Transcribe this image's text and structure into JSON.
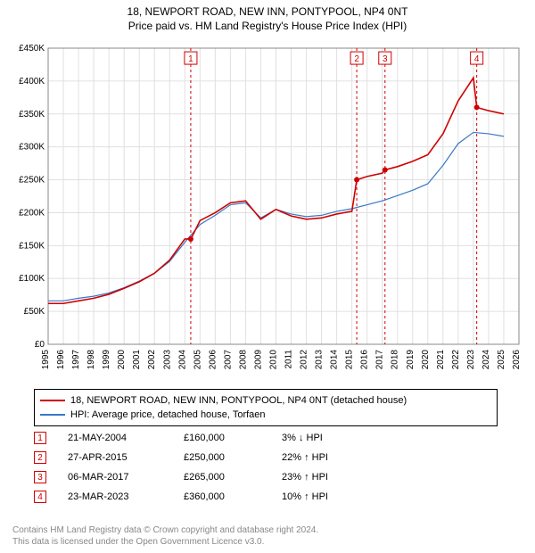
{
  "title": {
    "main": "18, NEWPORT ROAD, NEW INN, PONTYPOOL, NP4 0NT",
    "sub": "Price paid vs. HM Land Registry's House Price Index (HPI)",
    "fontsize": 12,
    "color": "#000000"
  },
  "chart": {
    "type": "line",
    "background_color": "#ffffff",
    "plot_border_color": "#888888",
    "grid_color": "#e0e0e0",
    "xlim": [
      1995,
      2026
    ],
    "ylim": [
      0,
      450000
    ],
    "ytick_step": 50000,
    "ytick_labels": [
      "£0",
      "£50K",
      "£100K",
      "£150K",
      "£200K",
      "£250K",
      "£300K",
      "£350K",
      "£400K",
      "£450K"
    ],
    "xtick_step": 1,
    "xtick_labels": [
      "1995",
      "1996",
      "1997",
      "1998",
      "1999",
      "2000",
      "2001",
      "2002",
      "2003",
      "2004",
      "2005",
      "2006",
      "2007",
      "2008",
      "2009",
      "2010",
      "2011",
      "2012",
      "2013",
      "2014",
      "2015",
      "2016",
      "2017",
      "2018",
      "2019",
      "2020",
      "2021",
      "2022",
      "2023",
      "2024",
      "2025",
      "2026"
    ],
    "axis_label_fontsize": 10,
    "axis_label_color": "#000000",
    "series": [
      {
        "name": "property",
        "label": "18, NEWPORT ROAD, NEW INN, PONTYPOOL, NP4 0NT (detached house)",
        "color": "#d00000",
        "line_width": 1.6,
        "data": [
          [
            1995,
            62000
          ],
          [
            1996,
            62000
          ],
          [
            1997,
            66000
          ],
          [
            1998,
            70000
          ],
          [
            1999,
            76000
          ],
          [
            2000,
            85000
          ],
          [
            2001,
            95000
          ],
          [
            2002,
            108000
          ],
          [
            2003,
            128000
          ],
          [
            2004,
            160000
          ],
          [
            2004.4,
            160000
          ],
          [
            2005,
            188000
          ],
          [
            2006,
            200000
          ],
          [
            2007,
            215000
          ],
          [
            2008,
            218000
          ],
          [
            2009,
            190000
          ],
          [
            2010,
            205000
          ],
          [
            2011,
            195000
          ],
          [
            2012,
            190000
          ],
          [
            2013,
            192000
          ],
          [
            2014,
            198000
          ],
          [
            2015,
            202000
          ],
          [
            2015.32,
            250000
          ],
          [
            2016,
            255000
          ],
          [
            2017,
            260000
          ],
          [
            2017.18,
            265000
          ],
          [
            2018,
            270000
          ],
          [
            2019,
            278000
          ],
          [
            2020,
            288000
          ],
          [
            2021,
            320000
          ],
          [
            2022,
            370000
          ],
          [
            2023,
            405000
          ],
          [
            2023.22,
            360000
          ],
          [
            2024,
            355000
          ],
          [
            2025,
            350000
          ]
        ]
      },
      {
        "name": "hpi",
        "label": "HPI: Average price, detached house, Torfaen",
        "color": "#3878c8",
        "line_width": 1.2,
        "data": [
          [
            1995,
            66000
          ],
          [
            1996,
            66000
          ],
          [
            1997,
            70000
          ],
          [
            1998,
            73000
          ],
          [
            1999,
            78000
          ],
          [
            2000,
            86000
          ],
          [
            2001,
            96000
          ],
          [
            2002,
            108000
          ],
          [
            2003,
            126000
          ],
          [
            2004,
            155000
          ],
          [
            2005,
            182000
          ],
          [
            2006,
            196000
          ],
          [
            2007,
            212000
          ],
          [
            2008,
            215000
          ],
          [
            2009,
            192000
          ],
          [
            2010,
            205000
          ],
          [
            2011,
            198000
          ],
          [
            2012,
            194000
          ],
          [
            2013,
            196000
          ],
          [
            2014,
            202000
          ],
          [
            2015,
            206000
          ],
          [
            2016,
            212000
          ],
          [
            2017,
            218000
          ],
          [
            2018,
            226000
          ],
          [
            2019,
            234000
          ],
          [
            2020,
            244000
          ],
          [
            2021,
            272000
          ],
          [
            2022,
            305000
          ],
          [
            2023,
            322000
          ],
          [
            2024,
            320000
          ],
          [
            2025,
            316000
          ]
        ]
      }
    ],
    "markers": [
      {
        "n": "1",
        "x": 2004.39,
        "y": 160000,
        "line_color": "#d00000",
        "fill": "#ffffff",
        "border": "#d00000",
        "box_y": 435000
      },
      {
        "n": "2",
        "x": 2015.32,
        "y": 250000,
        "line_color": "#d00000",
        "fill": "#ffffff",
        "border": "#d00000",
        "box_y": 435000
      },
      {
        "n": "3",
        "x": 2017.18,
        "y": 265000,
        "line_color": "#d00000",
        "fill": "#ffffff",
        "border": "#d00000",
        "box_y": 435000
      },
      {
        "n": "4",
        "x": 2023.22,
        "y": 360000,
        "line_color": "#d00000",
        "fill": "#ffffff",
        "border": "#d00000",
        "box_y": 435000
      }
    ],
    "marker_point_radius": 3,
    "marker_point_fill": "#d00000",
    "marker_line_dash": "3,3"
  },
  "legend": {
    "rows": [
      {
        "color": "#d00000",
        "label": "18, NEWPORT ROAD, NEW INN, PONTYPOOL, NP4 0NT (detached house)"
      },
      {
        "color": "#3878c8",
        "label": "HPI: Average price, detached house, Torfaen"
      }
    ],
    "fontsize": 11,
    "border_color": "#000000"
  },
  "transactions": {
    "rows": [
      {
        "n": "1",
        "date": "21-MAY-2004",
        "price": "£160,000",
        "diff": "3% ↓ HPI"
      },
      {
        "n": "2",
        "date": "27-APR-2015",
        "price": "£250,000",
        "diff": "22% ↑ HPI"
      },
      {
        "n": "3",
        "date": "06-MAR-2017",
        "price": "£265,000",
        "diff": "23% ↑ HPI"
      },
      {
        "n": "4",
        "date": "23-MAR-2023",
        "price": "£360,000",
        "diff": "10% ↑ HPI"
      }
    ],
    "marker_border": "#d00000",
    "marker_text_color": "#d00000",
    "fontsize": 11
  },
  "footer": {
    "line1": "Contains HM Land Registry data © Crown copyright and database right 2024.",
    "line2": "This data is licensed under the Open Government Licence v3.0.",
    "color": "#888888",
    "fontsize": 10
  }
}
